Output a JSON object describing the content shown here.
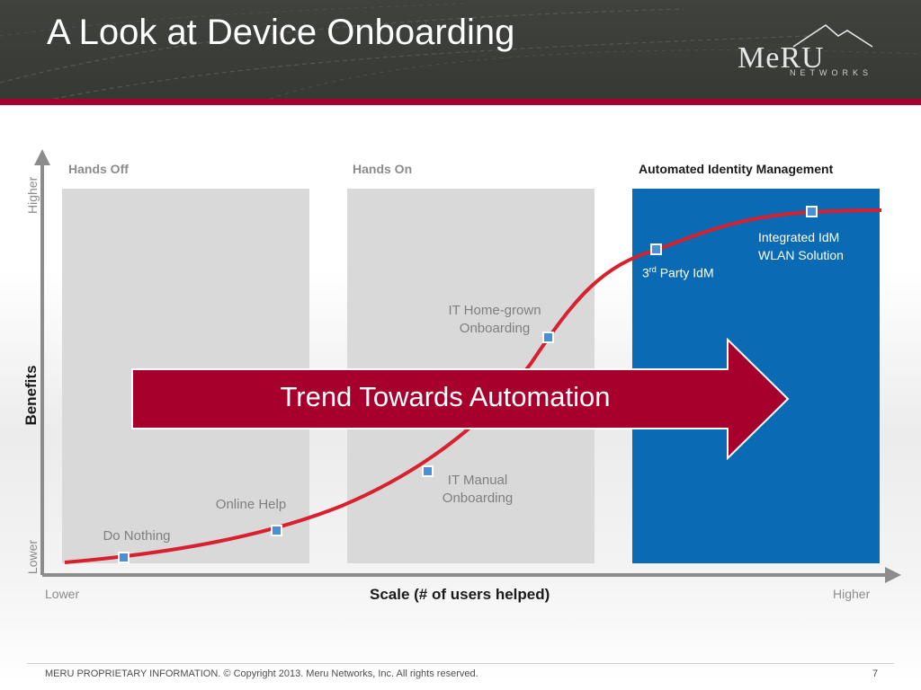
{
  "slide": {
    "title": "A Look at Device Onboarding",
    "page_number": "7",
    "footer": "MERU PROPRIETARY INFORMATION. © Copyright 2013. Meru Networks, Inc. All rights reserved."
  },
  "logo": {
    "word": "MeRU",
    "sub": "NETWORKS",
    "registered": "®"
  },
  "columns": [
    {
      "label": "Hands Off"
    },
    {
      "label": "Hands On"
    },
    {
      "label": "Automated Identity Management"
    }
  ],
  "axes": {
    "y_title": "Benefits",
    "y_high": "Higher",
    "y_low": "Lower",
    "x_title": "Scale (# of users helped)",
    "x_low": "Lower",
    "x_high": "Higher"
  },
  "points": [
    {
      "label": "Do Nothing"
    },
    {
      "label": "Online Help"
    },
    {
      "label_line1": "IT Manual",
      "label_line2": "Onboarding"
    },
    {
      "label_line1": "IT Home-grown",
      "label_line2": "Onboarding"
    },
    {
      "label_pre": "3",
      "label_sup": "rd",
      "label_post": " Party IdM"
    },
    {
      "label_line1": "Integrated IdM",
      "label_line2": "WLAN Solution"
    }
  ],
  "arrow": {
    "text": "Trend Towards Automation"
  },
  "colors": {
    "header_bg": "#3a3d38",
    "accent_red": "#a8002d",
    "automated_blue": "#0a6ab3",
    "panel_gray": "#d9d9d9",
    "curve_red": "#d8202e",
    "marker_blue": "#4a90d9"
  }
}
